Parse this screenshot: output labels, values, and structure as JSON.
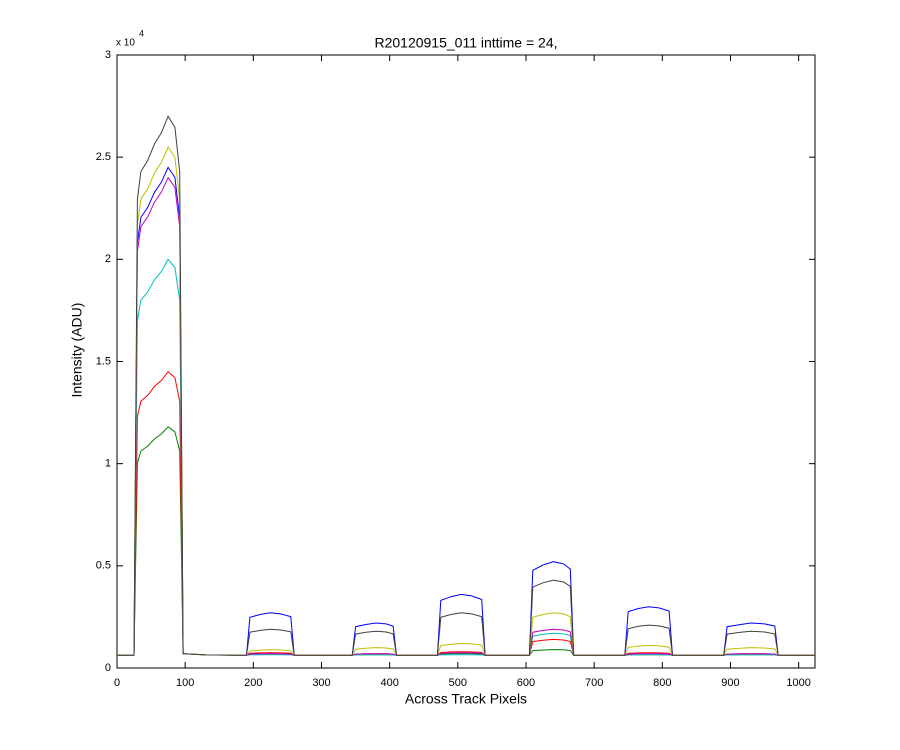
{
  "chart_data": {
    "type": "line",
    "title": "R20120915_011 inttime = 24,",
    "x_label": "Across Track Pixels",
    "y_label": "Intensity (ADU)",
    "y_exponent_base": "x 10",
    "y_exponent_power": "4",
    "xlim": [
      0,
      1024
    ],
    "xticks": [
      0,
      100,
      200,
      300,
      400,
      500,
      600,
      700,
      800,
      900,
      1000
    ],
    "ylim": [
      0,
      30000
    ],
    "yticks": [
      0,
      {
        "value": 5000,
        "label": "0.5"
      },
      {
        "value": 10000,
        "label": "1"
      },
      {
        "value": 15000,
        "label": "1.5"
      },
      {
        "value": 20000,
        "label": "2"
      },
      {
        "value": 25000,
        "label": "2.5"
      },
      {
        "value": 30000,
        "label": "3"
      }
    ],
    "grid": false,
    "x": [
      0,
      25,
      30,
      35,
      45,
      55,
      65,
      75,
      85,
      92,
      97,
      130,
      190,
      195,
      210,
      225,
      240,
      255,
      260,
      345,
      350,
      365,
      380,
      395,
      405,
      410,
      470,
      475,
      490,
      505,
      520,
      535,
      540,
      605,
      610,
      625,
      640,
      655,
      665,
      670,
      745,
      750,
      765,
      780,
      795,
      810,
      815,
      890,
      895,
      915,
      930,
      950,
      965,
      970,
      1024
    ],
    "series": [
      {
        "color": "#0000ff",
        "values": [
          620,
          620,
          20830,
          22050,
          22540,
          23280,
          23770,
          24500,
          24010,
          22050,
          700,
          640,
          620,
          2480,
          2620,
          2700,
          2650,
          2510,
          620,
          620,
          2020,
          2130,
          2200,
          2160,
          2050,
          620,
          620,
          3310,
          3490,
          3600,
          3530,
          3350,
          620,
          620,
          4780,
          5040,
          5200,
          5100,
          4840,
          620,
          620,
          2760,
          2910,
          3000,
          2940,
          2790,
          620,
          620,
          2020,
          2130,
          2200,
          2160,
          2050,
          620,
          620
        ]
      },
      {
        "color": "#008000",
        "values": [
          620,
          620,
          10030,
          10620,
          10860,
          11210,
          11450,
          11800,
          11560,
          10620,
          700,
          640,
          620,
          680,
          700,
          700,
          700,
          680,
          620,
          620,
          640,
          650,
          650,
          650,
          640,
          620,
          620,
          680,
          700,
          700,
          700,
          680,
          620,
          620,
          850,
          880,
          900,
          890,
          850,
          620,
          620,
          640,
          650,
          650,
          650,
          640,
          620,
          620,
          640,
          650,
          650,
          650,
          640,
          620,
          620
        ]
      },
      {
        "color": "#ff0000",
        "values": [
          620,
          620,
          12330,
          13050,
          13340,
          13780,
          14070,
          14500,
          14210,
          13050,
          700,
          640,
          620,
          720,
          740,
          750,
          740,
          720,
          620,
          620,
          680,
          700,
          700,
          700,
          680,
          620,
          620,
          760,
          790,
          800,
          790,
          760,
          620,
          620,
          1290,
          1360,
          1400,
          1370,
          1300,
          620,
          620,
          720,
          740,
          750,
          740,
          720,
          620,
          620,
          680,
          700,
          700,
          700,
          680,
          620,
          620
        ]
      },
      {
        "color": "#00bfbf",
        "values": [
          620,
          620,
          17000,
          18000,
          18400,
          19000,
          19400,
          20000,
          19600,
          18000,
          700,
          640,
          620,
          640,
          650,
          650,
          650,
          640,
          620,
          620,
          640,
          650,
          650,
          650,
          640,
          620,
          620,
          640,
          650,
          650,
          650,
          640,
          620,
          620,
          1560,
          1650,
          1700,
          1670,
          1580,
          620,
          620,
          640,
          650,
          650,
          650,
          640,
          620,
          620,
          640,
          650,
          650,
          650,
          640,
          620,
          620
        ]
      },
      {
        "color": "#bf00bf",
        "values": [
          620,
          620,
          20400,
          21600,
          22080,
          22800,
          23280,
          24000,
          23520,
          21600,
          700,
          640,
          620,
          680,
          700,
          700,
          700,
          680,
          620,
          620,
          680,
          700,
          700,
          700,
          680,
          620,
          620,
          720,
          740,
          750,
          740,
          720,
          620,
          620,
          1750,
          1840,
          1900,
          1860,
          1770,
          620,
          620,
          680,
          700,
          700,
          700,
          680,
          620,
          620,
          680,
          700,
          700,
          700,
          680,
          620,
          620
        ]
      },
      {
        "color": "#bfbf00",
        "values": [
          620,
          620,
          21680,
          22950,
          23460,
          24230,
          24740,
          25500,
          24990,
          22950,
          700,
          640,
          620,
          830,
          870,
          900,
          880,
          840,
          620,
          620,
          920,
          970,
          1000,
          980,
          930,
          620,
          620,
          1100,
          1160,
          1200,
          1180,
          1120,
          620,
          620,
          2480,
          2620,
          2700,
          2650,
          2510,
          620,
          620,
          1010,
          1070,
          1100,
          1080,
          1020,
          620,
          620,
          920,
          970,
          1000,
          980,
          930,
          620,
          620
        ]
      },
      {
        "color": "#404040",
        "values": [
          620,
          620,
          22950,
          24300,
          24840,
          25650,
          26190,
          27000,
          26460,
          24300,
          700,
          640,
          620,
          1750,
          1840,
          1900,
          1860,
          1770,
          620,
          620,
          1660,
          1750,
          1800,
          1760,
          1670,
          620,
          620,
          2480,
          2620,
          2700,
          2650,
          2510,
          620,
          620,
          3960,
          4170,
          4300,
          4210,
          4000,
          620,
          620,
          1930,
          2040,
          2100,
          2060,
          1950,
          620,
          620,
          1660,
          1750,
          1800,
          1760,
          1670,
          620,
          620
        ]
      }
    ]
  }
}
